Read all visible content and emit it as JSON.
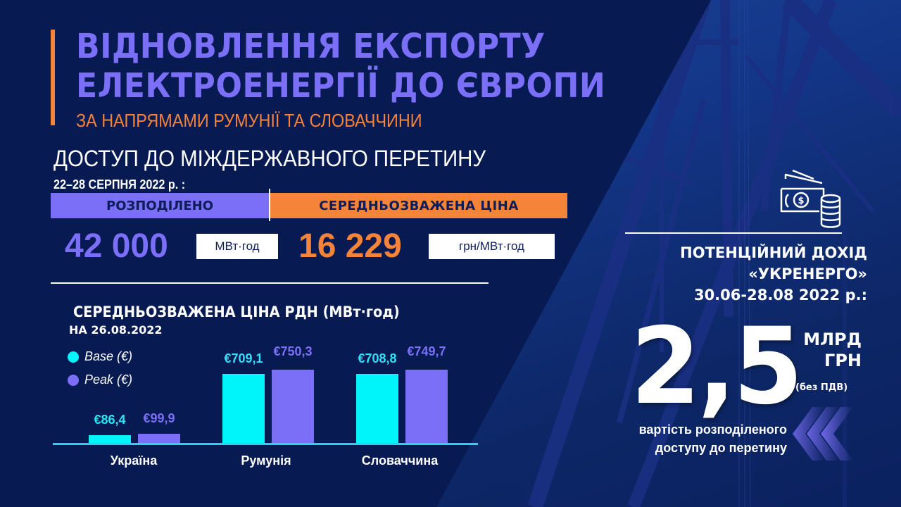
{
  "header": {
    "title_line1": "ВІДНОВЛЕННЯ ЕКСПОРТУ",
    "title_line2": "ЕЛЕКТРОЕНЕРГІЇ ДО ЄВРОПИ",
    "subtitle": "ЗА НАПРЯМАМИ РУМУНІЇ ТА СЛОВАЧЧИНИ"
  },
  "access": {
    "heading": "ДОСТУП ДО МІЖДЕРЖАВНОГО ПЕРЕТИНУ",
    "period": "22–28 СЕРПНЯ 2022 р. :",
    "distributed_label": "РОЗПОДІЛЕНО",
    "price_label": "СЕРЕДНЬОЗВАЖЕНА  ЦІНА",
    "distributed_value": "42 000",
    "distributed_unit": "МВт·год",
    "price_value": "16 229",
    "price_unit": "грн/МВт·год"
  },
  "income": {
    "heading_line1": "ПОТЕНЦІЙНИЙ ДОХІД",
    "heading_line2": "«УКРЕНЕРГО»",
    "heading_line3": "30.06-28.08 2022 р.:",
    "value": "2,5",
    "unit_line1": "МЛРД",
    "unit_line2": "ГРН",
    "note": "(без ПДВ)",
    "caption_line1": "вартість розподіленого",
    "caption_line2": "доступу до перетину",
    "icon": "money-coins-icon"
  },
  "colors": {
    "background_panel": "#071a52",
    "accent_purple": "#7b6ff7",
    "accent_orange": "#f5843a",
    "base_cyan": "#00f5fb",
    "axis": "#2fd0ef"
  },
  "chart_data": {
    "type": "bar",
    "title": "СЕРЕДНЬОЗВАЖЕНА ЦІНА РДН (МВт·год)",
    "subtitle": "НА 26.08.2022",
    "categories": [
      "Україна",
      "Румунія",
      "Словаччина"
    ],
    "series": [
      {
        "name": "Base (€)",
        "color": "#00f5fb",
        "values": [
          86.4,
          709.1,
          708.8
        ],
        "labels": [
          "€86,4",
          "€709,1",
          "€708,8"
        ]
      },
      {
        "name": "Peak (€)",
        "color": "#7b6ff7",
        "values": [
          99.9,
          750.3,
          749.7
        ],
        "labels": [
          "€99,9",
          "€750,3",
          "€749,7"
        ]
      }
    ],
    "xlabel": "",
    "ylabel": "",
    "grid": false,
    "legend_position": "top-left",
    "legend": [
      "Base (€)",
      "Peak (€)"
    ]
  }
}
